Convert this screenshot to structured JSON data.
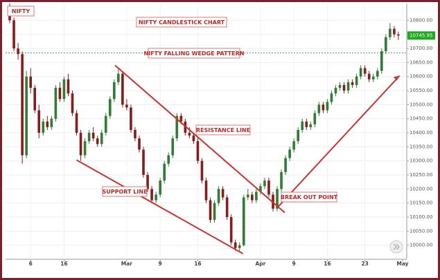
{
  "chart_data": {
    "type": "candlestick",
    "title": "NIFTY CANDLESTICK CHART",
    "annotations": [
      "NIFTY FALLING WEDGE PATTERN",
      "RESISTANCE LINE",
      "SUPPORT LINE",
      "BREAK OUT POINT"
    ],
    "x": [
      0,
      1,
      2,
      3,
      4,
      5,
      6,
      7,
      8,
      9,
      10,
      11,
      12,
      13,
      14,
      15,
      16,
      17,
      18,
      19,
      20,
      21,
      22,
      23,
      24,
      25,
      26,
      27,
      28,
      29,
      30,
      31,
      32,
      33,
      34,
      35,
      36,
      37,
      38,
      39,
      40,
      41,
      42,
      43,
      44,
      45,
      46,
      47,
      48,
      49,
      50,
      51,
      52,
      53,
      54,
      55,
      56,
      57,
      58,
      59,
      60,
      61,
      62,
      63,
      64,
      65,
      66,
      67,
      68,
      69,
      70,
      71,
      72,
      73,
      74,
      75,
      76,
      77,
      78,
      79,
      80,
      81,
      82,
      83,
      84,
      85,
      86,
      87,
      88,
      89,
      90,
      91,
      92,
      93
    ],
    "series": [
      {
        "name": "NIFTY",
        "up_color": "#2e7d32",
        "down_color": "#8b1a1a",
        "open": [
          10840,
          10800,
          10700,
          10680,
          10320,
          10600,
          10560,
          10480,
          10400,
          10440,
          10420,
          10450,
          10560,
          10520,
          10590,
          10540,
          10470,
          10400,
          10320,
          10370,
          10400,
          10380,
          10360,
          10400,
          10460,
          10520,
          10580,
          10610,
          10500,
          10490,
          10410,
          10380,
          10340,
          10250,
          10200,
          10160,
          10180,
          10230,
          10290,
          10320,
          10380,
          10460,
          10440,
          10400,
          10390,
          10370,
          10300,
          10230,
          10160,
          10090,
          10150,
          10200,
          10170,
          10100,
          10010,
          9990,
          10000,
          10170,
          10180,
          10160,
          10190,
          10210,
          10230,
          10180,
          10130,
          10200,
          10260,
          10310,
          10340,
          10370,
          10410,
          10440,
          10420,
          10430,
          10470,
          10500,
          10480,
          10510,
          10540,
          10560,
          10570,
          10550,
          10580,
          10570,
          10600,
          10630,
          10610,
          10590,
          10600,
          10620,
          10690,
          10740,
          10770,
          10750
        ],
        "high": [
          10860,
          10810,
          10720,
          10690,
          10620,
          10630,
          10570,
          10500,
          10450,
          10460,
          10460,
          10570,
          10580,
          10600,
          10610,
          10550,
          10480,
          10410,
          10380,
          10410,
          10420,
          10390,
          10410,
          10470,
          10530,
          10590,
          10630,
          10620,
          10520,
          10500,
          10420,
          10390,
          10350,
          10260,
          10210,
          10190,
          10240,
          10300,
          10330,
          10390,
          10470,
          10470,
          10450,
          10420,
          10400,
          10380,
          10310,
          10240,
          10170,
          10160,
          10210,
          10210,
          10180,
          10110,
          10020,
          10010,
          10180,
          10200,
          10190,
          10200,
          10220,
          10240,
          10240,
          10190,
          10210,
          10270,
          10320,
          10350,
          10380,
          10420,
          10450,
          10450,
          10440,
          10480,
          10510,
          10510,
          10520,
          10550,
          10570,
          10580,
          10580,
          10590,
          10590,
          10610,
          10640,
          10640,
          10620,
          10610,
          10630,
          10700,
          10750,
          10790,
          10780,
          10760
        ],
        "low": [
          10790,
          10690,
          10660,
          10290,
          10310,
          10540,
          10470,
          10380,
          10390,
          10410,
          10410,
          10440,
          10510,
          10510,
          10530,
          10460,
          10390,
          10300,
          10310,
          10360,
          10370,
          10350,
          10350,
          10390,
          10450,
          10510,
          10570,
          10490,
          10480,
          10400,
          10370,
          10330,
          10240,
          10190,
          10150,
          10150,
          10170,
          10220,
          10280,
          10310,
          10370,
          10430,
          10390,
          10380,
          10360,
          10290,
          10220,
          10150,
          10080,
          10080,
          10140,
          10160,
          10090,
          10000,
          9980,
          9975,
          9995,
          10160,
          10150,
          10150,
          10180,
          10200,
          10170,
          10120,
          10120,
          10190,
          10250,
          10300,
          10330,
          10360,
          10400,
          10410,
          10410,
          10420,
          10460,
          10470,
          10470,
          10500,
          10530,
          10550,
          10540,
          10540,
          10560,
          10560,
          10590,
          10600,
          10580,
          10580,
          10590,
          10610,
          10680,
          10730,
          10740,
          10730
        ],
        "close": [
          10800,
          10700,
          10680,
          10320,
          10600,
          10560,
          10480,
          10400,
          10440,
          10420,
          10450,
          10560,
          10520,
          10590,
          10540,
          10470,
          10400,
          10320,
          10370,
          10400,
          10380,
          10360,
          10400,
          10460,
          10520,
          10580,
          10610,
          10500,
          10490,
          10410,
          10380,
          10340,
          10250,
          10200,
          10160,
          10180,
          10230,
          10290,
          10320,
          10380,
          10460,
          10440,
          10400,
          10390,
          10370,
          10300,
          10230,
          10160,
          10090,
          10150,
          10200,
          10170,
          10100,
          10010,
          9990,
          10000,
          10170,
          10180,
          10160,
          10190,
          10210,
          10230,
          10180,
          10130,
          10200,
          10260,
          10310,
          10340,
          10370,
          10410,
          10440,
          10420,
          10430,
          10470,
          10500,
          10480,
          10510,
          10540,
          10560,
          10570,
          10550,
          10580,
          10570,
          10600,
          10630,
          10610,
          10590,
          10600,
          10620,
          10690,
          10740,
          10770,
          10750,
          10745.95
        ]
      }
    ],
    "xlim": [
      -1,
      95
    ],
    "xticks": [
      {
        "value": 5,
        "label": "6"
      },
      {
        "value": 13,
        "label": "16"
      },
      {
        "value": 28,
        "label": "Mar"
      },
      {
        "value": 36,
        "label": "9"
      },
      {
        "value": 45,
        "label": "16"
      },
      {
        "value": 60,
        "label": "Apr"
      },
      {
        "value": 68,
        "label": "9"
      },
      {
        "value": 76,
        "label": "16"
      },
      {
        "value": 85,
        "label": "23"
      },
      {
        "value": 94,
        "label": "May"
      }
    ],
    "ylim": [
      9950,
      10860
    ],
    "yticks": [
      {
        "value": 10000,
        "label": "10000.00"
      },
      {
        "value": 10050,
        "label": "10050.00"
      },
      {
        "value": 10100,
        "label": "10100.00"
      },
      {
        "value": 10150,
        "label": "10150.00"
      },
      {
        "value": 10200,
        "label": "10200.00"
      },
      {
        "value": 10250,
        "label": "10250.00"
      },
      {
        "value": 10300,
        "label": "10300.00"
      },
      {
        "value": 10350,
        "label": "10350.00"
      },
      {
        "value": 10400,
        "label": "10400.00"
      },
      {
        "value": 10450,
        "label": "10450.00"
      },
      {
        "value": 10500,
        "label": "10500.00"
      },
      {
        "value": 10550,
        "label": "10550.00"
      },
      {
        "value": 10600,
        "label": "10600.00"
      },
      {
        "value": 10650,
        "label": "10650.00"
      },
      {
        "value": 10700,
        "label": "10700.00"
      },
      {
        "value": 10750,
        "label": "10750.00"
      },
      {
        "value": 10800,
        "label": "10800.00"
      }
    ],
    "grid": true,
    "hline": {
      "y": 10684,
      "color": "#4caf50"
    },
    "trend_lines": [
      {
        "x": [
          25.2,
          65.8
        ],
        "y": [
          10640,
          10116
        ],
        "color": "#d32f2f"
      },
      {
        "x": [
          16,
          55.8
        ],
        "y": [
          10303,
          9970
        ],
        "color": "#d32f2f"
      },
      {
        "x": [
          64.1,
          93.3
        ],
        "y": [
          10135,
          10603
        ],
        "color": "#d32f2f"
      }
    ]
  }
}
